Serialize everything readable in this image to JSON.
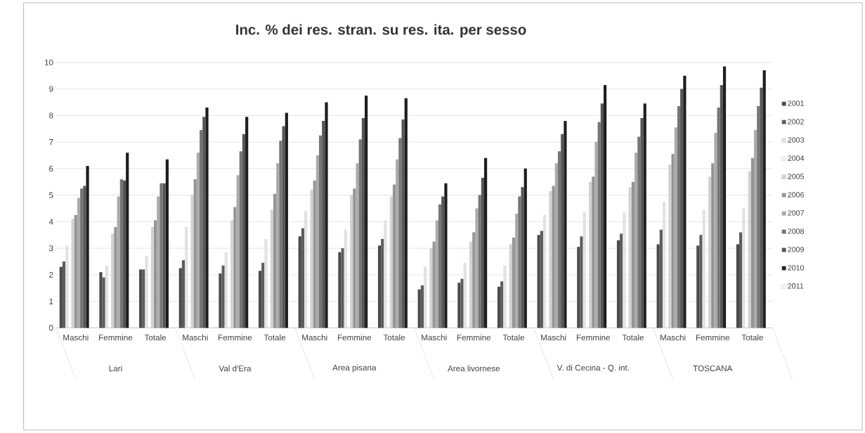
{
  "chart_data": {
    "type": "bar",
    "title": "Inc. % dei res. stran. su res. ita. per sesso",
    "categories": [
      "Maschi",
      "Femmine",
      "Totale",
      "Maschi",
      "Femmine",
      "Totale",
      "Maschi",
      "Femmine",
      "Totale",
      "Maschi",
      "Femmine",
      "Totale",
      "Maschi",
      "Femmine",
      "Totale",
      "Maschi",
      "Femmine",
      "Totale"
    ],
    "annotations": [
      "Lari",
      "Val d'Era",
      "Area pisana",
      "Area livornese",
      "V. di Cecina - Q. int.",
      "TOSCANA"
    ],
    "series": [
      {
        "name": "2001",
        "color": "#4a4a4a",
        "values": [
          2.3,
          2.1,
          2.2,
          2.25,
          2.05,
          2.15,
          3.45,
          2.85,
          3.1,
          1.45,
          1.7,
          1.55,
          3.5,
          3.05,
          3.3,
          3.15,
          3.1,
          3.15
        ]
      },
      {
        "name": "2002",
        "color": "#5c5c5c",
        "values": [
          2.5,
          1.9,
          2.2,
          2.55,
          2.35,
          2.45,
          3.75,
          3.0,
          3.35,
          1.6,
          1.85,
          1.75,
          3.65,
          3.45,
          3.55,
          3.7,
          3.5,
          3.6
        ]
      },
      {
        "name": "2003",
        "color": "#e2e2e2",
        "values": [
          3.1,
          2.35,
          2.7,
          3.8,
          2.85,
          3.35,
          4.4,
          3.7,
          4.05,
          2.3,
          2.45,
          2.35,
          4.25,
          4.35,
          4.35,
          4.75,
          4.45,
          4.5
        ]
      },
      {
        "name": "2004",
        "color": "#f5f5f5",
        "values": [
          null,
          null,
          null,
          null,
          null,
          null,
          null,
          null,
          null,
          null,
          null,
          null,
          null,
          null,
          null,
          null,
          null,
          null
        ]
      },
      {
        "name": "2005",
        "color": "#d2d2d2",
        "values": [
          4.1,
          3.55,
          3.8,
          5.0,
          4.05,
          4.45,
          5.2,
          5.0,
          4.95,
          3.0,
          3.25,
          3.15,
          5.15,
          5.5,
          5.3,
          6.15,
          5.7,
          5.9
        ]
      },
      {
        "name": "2006",
        "color": "#959595",
        "values": [
          4.25,
          3.8,
          4.05,
          5.6,
          4.55,
          5.05,
          5.55,
          5.25,
          5.4,
          3.25,
          3.6,
          3.4,
          5.35,
          5.7,
          5.5,
          6.55,
          6.2,
          6.4
        ]
      },
      {
        "name": "2007",
        "color": "#ababab",
        "values": [
          4.9,
          4.95,
          4.95,
          6.6,
          5.75,
          6.2,
          6.5,
          6.2,
          6.35,
          4.05,
          4.5,
          4.3,
          6.2,
          7.0,
          6.6,
          7.55,
          7.35,
          7.45
        ]
      },
      {
        "name": "2008",
        "color": "#757575",
        "values": [
          5.25,
          5.6,
          5.45,
          7.45,
          6.65,
          7.05,
          7.25,
          7.1,
          7.15,
          4.65,
          5.0,
          4.95,
          6.65,
          7.75,
          7.2,
          8.35,
          8.3,
          8.35
        ]
      },
      {
        "name": "2009",
        "color": "#555555",
        "values": [
          5.35,
          5.55,
          5.45,
          7.95,
          7.3,
          7.6,
          7.8,
          7.9,
          7.85,
          4.95,
          5.65,
          5.3,
          7.3,
          8.45,
          7.9,
          9.0,
          9.15,
          9.05
        ]
      },
      {
        "name": "2010",
        "color": "#1e1e1e",
        "values": [
          6.1,
          6.6,
          6.35,
          8.3,
          7.95,
          8.1,
          8.5,
          8.75,
          8.65,
          5.45,
          6.4,
          6.0,
          7.8,
          9.15,
          8.45,
          9.5,
          9.85,
          9.7
        ]
      },
      {
        "name": "2011",
        "color": "#f5f5f5",
        "values": [
          null,
          null,
          null,
          null,
          null,
          null,
          null,
          null,
          null,
          null,
          null,
          null,
          null,
          null,
          null,
          null,
          null,
          null
        ]
      }
    ],
    "ylim": [
      0,
      10
    ],
    "yticks": [
      0,
      1,
      2,
      3,
      4,
      5,
      6,
      7,
      8,
      9,
      10
    ],
    "grid": "y",
    "legend": "right"
  }
}
